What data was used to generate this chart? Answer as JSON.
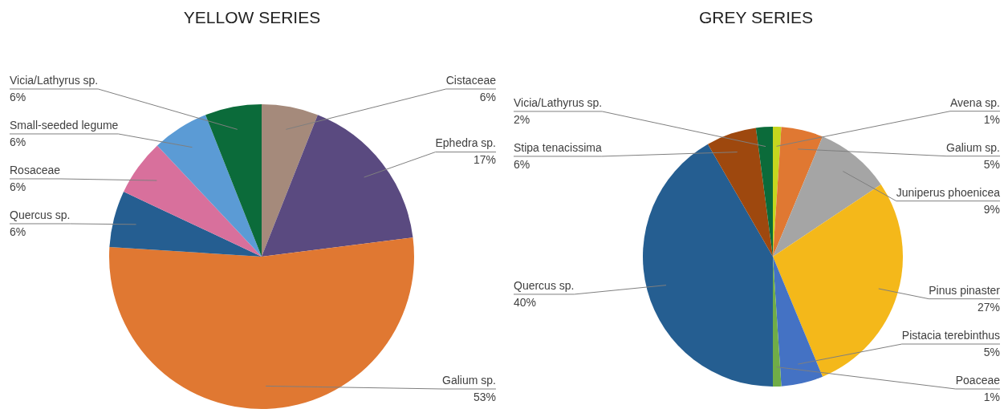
{
  "chart_data": [
    {
      "type": "pie",
      "title": "YELLOW SERIES",
      "categories": [
        "Cistaceae",
        "Ephedra sp.",
        "Galium sp.",
        "Quercus sp.",
        "Rosaceae",
        "Small-seeded legume",
        "Vicia/Lathyrus sp."
      ],
      "values": [
        6,
        17,
        53,
        6,
        6,
        6,
        6
      ],
      "value_labels": [
        "6%",
        "17%",
        "53%",
        "6%",
        "6%",
        "6%",
        "6%"
      ],
      "colors": [
        "#a58a7b",
        "#5a4a80",
        "#e07832",
        "#255e91",
        "#d8709c",
        "#5b9bd5",
        "#0b6b3a"
      ]
    },
    {
      "type": "pie",
      "title": "GREY SERIES",
      "categories": [
        "Avena sp.",
        "Galium sp.",
        "Juniperus phoenicea",
        "Pinus pinaster",
        "Pistacia terebinthus",
        "Poaceae",
        "Quercus sp.",
        "Stipa tenacissima",
        "Vicia/Lathyrus sp."
      ],
      "values": [
        1,
        5,
        9,
        27,
        5,
        1,
        40,
        6,
        2
      ],
      "value_labels": [
        "1%",
        "5%",
        "9%",
        "27%",
        "5%",
        "1%",
        "40%",
        "6%",
        "2%"
      ],
      "colors": [
        "#c6d61e",
        "#e07832",
        "#a5a5a5",
        "#f4b81a",
        "#4472c4",
        "#70ad47",
        "#255e91",
        "#9e480e",
        "#0b6b3a"
      ]
    }
  ]
}
